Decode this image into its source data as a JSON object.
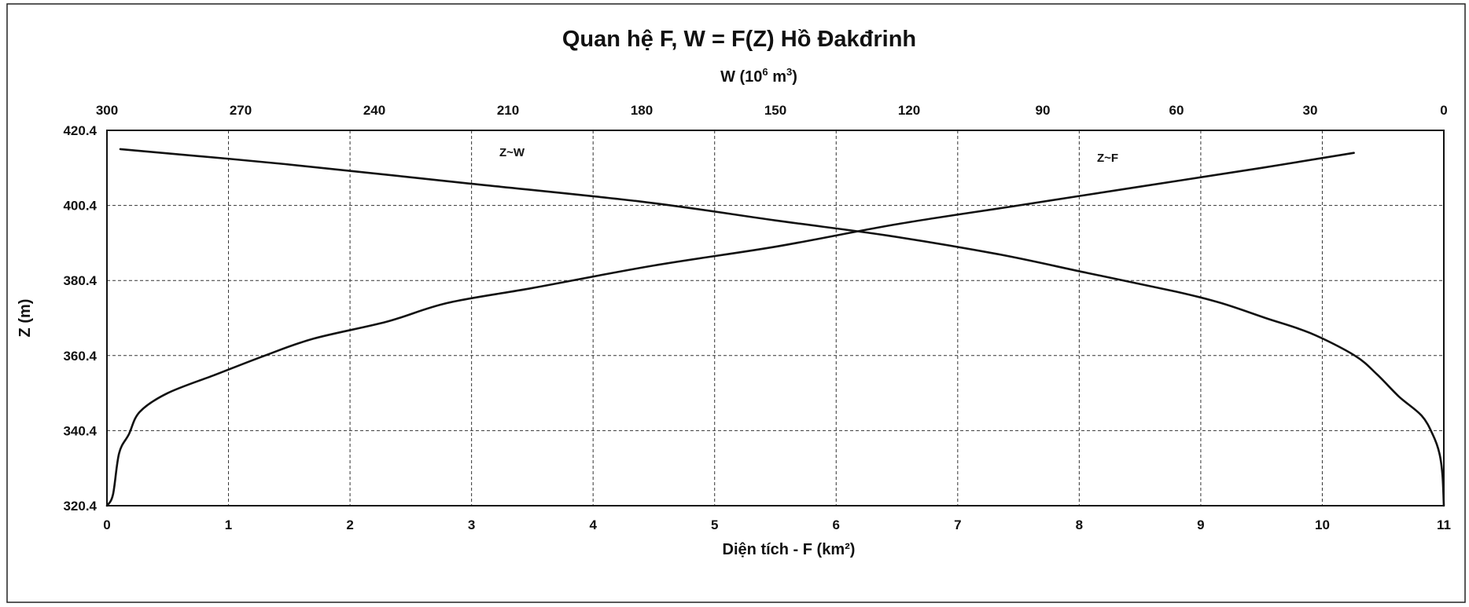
{
  "chart_data": {
    "type": "line",
    "title": "Quan hệ F, W = F(Z) Hồ Đakđrinh",
    "x_label": "Diện tích - F (km²)",
    "x2_label_main": "W (10",
    "x2_label_sup": "6",
    "x2_label_tail": " m",
    "x2_label_sup2": "3",
    "x2_label_end": ")",
    "y_label": "Z (m)",
    "x_range": [
      0,
      11
    ],
    "x2_range": [
      300,
      0
    ],
    "y_range": [
      320.4,
      420.4
    ],
    "grid": true,
    "x_ticks": [
      "0",
      "1",
      "2",
      "3",
      "4",
      "5",
      "6",
      "7",
      "8",
      "9",
      "10",
      "11"
    ],
    "x2_ticks": [
      "300",
      "270",
      "240",
      "210",
      "180",
      "150",
      "120",
      "90",
      "60",
      "30",
      "0"
    ],
    "y_ticks": [
      "420.4",
      "400.4",
      "380.4",
      "360.4",
      "340.4",
      "320.4"
    ],
    "series": [
      {
        "name": "Z~F",
        "axis": "F (km²), bottom",
        "x": [
          0.0,
          0.05,
          0.1,
          0.18,
          0.27,
          0.5,
          0.9,
          1.3,
          1.7,
          2.3,
          2.8,
          3.5,
          4.5,
          5.5,
          6.5,
          7.5,
          8.5,
          9.5,
          10.26
        ],
        "y": [
          320.4,
          323.4,
          334.4,
          339.4,
          345.4,
          350.4,
          355.4,
          360.4,
          364.9,
          369.4,
          374.4,
          378.4,
          384.4,
          389.4,
          395.4,
          400.4,
          405.4,
          410.4,
          414.4
        ]
      },
      {
        "name": "Z~W",
        "axis": "W (10⁶ m³), top",
        "x": [
          0,
          0.3,
          1,
          2.5,
          5,
          10,
          15,
          20,
          30,
          40,
          50,
          60,
          80,
          100,
          125,
          150,
          180,
          220,
          260,
          297
        ],
        "y": [
          320.4,
          328.4,
          334.4,
          339.4,
          344.4,
          349.4,
          355.4,
          360.4,
          366.4,
          370.4,
          374.4,
          377.4,
          382.4,
          387.4,
          392.4,
          396.4,
          401.4,
          406.4,
          411.4,
          415.4
        ]
      }
    ]
  }
}
